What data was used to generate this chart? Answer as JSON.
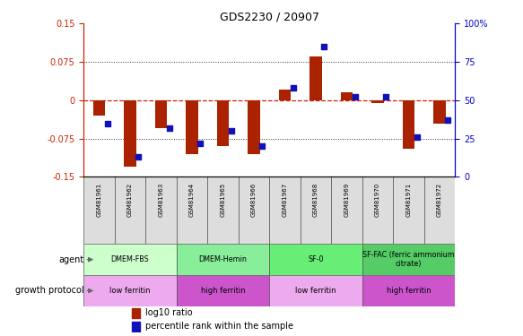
{
  "title": "GDS2230 / 20907",
  "samples": [
    "GSM81961",
    "GSM81962",
    "GSM81963",
    "GSM81964",
    "GSM81965",
    "GSM81966",
    "GSM81967",
    "GSM81968",
    "GSM81969",
    "GSM81970",
    "GSM81971",
    "GSM81972"
  ],
  "log10_ratio": [
    -0.03,
    -0.13,
    -0.055,
    -0.105,
    -0.09,
    -0.105,
    0.02,
    0.085,
    0.015,
    -0.005,
    -0.095,
    -0.045
  ],
  "percentile_rank": [
    35,
    13,
    32,
    22,
    30,
    20,
    58,
    85,
    52,
    52,
    26,
    37
  ],
  "ylim_left": [
    -0.15,
    0.15
  ],
  "ylim_right": [
    0,
    100
  ],
  "yticks_left": [
    -0.15,
    -0.075,
    0,
    0.075,
    0.15
  ],
  "yticks_right": [
    0,
    25,
    50,
    75,
    100
  ],
  "gridlines_zero_color": "#cc2200",
  "gridlines_other_color": "#333333",
  "bar_color": "#aa2200",
  "dot_color": "#1111bb",
  "agent_groups": [
    {
      "label": "DMEM-FBS",
      "start": 0,
      "end": 3,
      "color": "#ccffcc"
    },
    {
      "label": "DMEM-Hemin",
      "start": 3,
      "end": 6,
      "color": "#88ee99"
    },
    {
      "label": "SF-0",
      "start": 6,
      "end": 9,
      "color": "#66ee77"
    },
    {
      "label": "SF-FAC (ferric ammonium\ncitrate)",
      "start": 9,
      "end": 12,
      "color": "#55cc66"
    }
  ],
  "growth_groups": [
    {
      "label": "low ferritin",
      "start": 0,
      "end": 3,
      "color": "#eeaaee"
    },
    {
      "label": "high ferritin",
      "start": 3,
      "end": 6,
      "color": "#cc55cc"
    },
    {
      "label": "low ferritin",
      "start": 6,
      "end": 9,
      "color": "#eeaaee"
    },
    {
      "label": "high ferritin",
      "start": 9,
      "end": 12,
      "color": "#cc55cc"
    }
  ],
  "legend_bar_label": "log10 ratio",
  "legend_dot_label": "percentile rank within the sample",
  "left_axis_color": "#cc2200",
  "right_axis_color": "#0000cc"
}
